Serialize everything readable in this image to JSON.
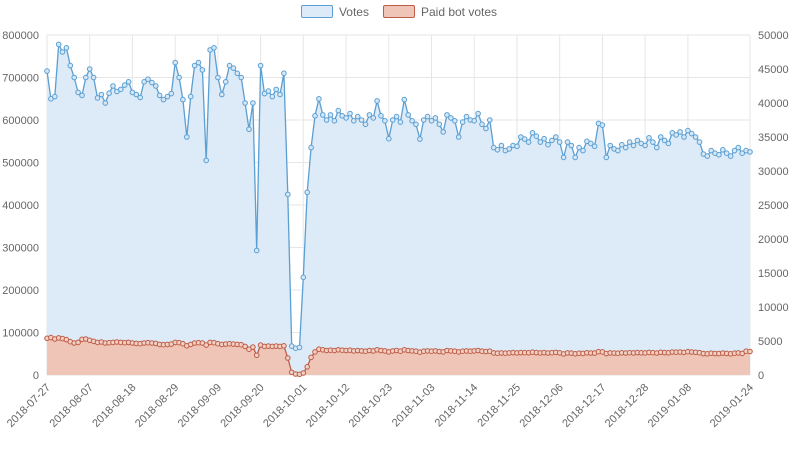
{
  "legend": [
    {
      "label": "Votes",
      "fill": "#dcebf7",
      "stroke": "#5b9fd3"
    },
    {
      "label": "Paid bot votes",
      "fill": "#eec5b6",
      "stroke": "#bd5c46"
    }
  ],
  "chart_data": {
    "type": "line",
    "title": "",
    "x_tick_labels": [
      "2018-07-27",
      "2018-08-07",
      "2018-08-18",
      "2018-08-29",
      "2018-09-09",
      "2018-09-20",
      "2018-10-01",
      "2018-10-12",
      "2018-10-23",
      "2018-11-03",
      "2018-11-14",
      "2018-11-25",
      "2018-12-06",
      "2018-12-17",
      "2018-12-28",
      "2019-01-08",
      "2019-01-24"
    ],
    "tick_days": [
      0,
      11,
      22,
      33,
      44,
      55,
      66,
      77,
      88,
      99,
      110,
      121,
      132,
      143,
      154,
      165,
      181
    ],
    "left_axis": {
      "min": 0,
      "max": 800000,
      "step": 100000
    },
    "right_axis": {
      "min": 0,
      "max": 50000,
      "step": 5000
    },
    "grid": true,
    "legend_position": "top",
    "series": [
      {
        "name": "Votes",
        "axis": "left",
        "stroke": "#5b9fd3",
        "point_fill": "#d6e8f6",
        "area_fill": "#dcebf7",
        "values": [
          715000,
          650000,
          655000,
          778000,
          760000,
          770000,
          728000,
          700000,
          665000,
          658000,
          700000,
          720000,
          700000,
          652000,
          660000,
          640000,
          663000,
          680000,
          667000,
          672000,
          682000,
          690000,
          665000,
          660000,
          653000,
          690000,
          696000,
          688000,
          680000,
          658000,
          648000,
          655000,
          662000,
          735000,
          700000,
          648000,
          560000,
          655000,
          728000,
          735000,
          718000,
          505000,
          765000,
          770000,
          700000,
          660000,
          690000,
          728000,
          722000,
          710000,
          700000,
          640000,
          578000,
          640000,
          293000,
          728000,
          662000,
          668000,
          655000,
          672000,
          660000,
          710000,
          425000,
          68000,
          63000,
          65000,
          230000,
          430000,
          535000,
          610000,
          650000,
          612000,
          600000,
          612000,
          598000,
          622000,
          610000,
          605000,
          615000,
          598000,
          608000,
          600000,
          590000,
          612000,
          605000,
          645000,
          610000,
          598000,
          556000,
          600000,
          608000,
          595000,
          648000,
          612000,
          598000,
          590000,
          555000,
          600000,
          608000,
          598000,
          605000,
          590000,
          572000,
          612000,
          605000,
          598000,
          560000,
          595000,
          608000,
          600000,
          598000,
          615000,
          590000,
          580000,
          600000,
          535000,
          530000,
          540000,
          528000,
          532000,
          540000,
          538000,
          560000,
          555000,
          548000,
          570000,
          562000,
          548000,
          556000,
          542000,
          552000,
          560000,
          548000,
          512000,
          548000,
          540000,
          512000,
          535000,
          528000,
          550000,
          545000,
          538000,
          592000,
          588000,
          512000,
          540000,
          532000,
          528000,
          542000,
          535000,
          548000,
          540000,
          552000,
          545000,
          540000,
          558000,
          548000,
          535000,
          560000,
          552000,
          545000,
          570000,
          565000,
          572000,
          560000,
          575000,
          568000,
          560000,
          548000,
          520000,
          515000,
          528000,
          522000,
          518000,
          530000,
          522000,
          515000,
          528000,
          535000,
          522000,
          528000,
          525000
        ]
      },
      {
        "name": "Paid bot votes",
        "axis": "right",
        "stroke": "#bd5c46",
        "point_fill": "#f3d0c4",
        "area_fill": "#eec5b6",
        "values": [
          5400,
          5500,
          5300,
          5450,
          5350,
          5200,
          4900,
          4700,
          4800,
          5250,
          5300,
          5100,
          4950,
          4800,
          4850,
          4700,
          4750,
          4800,
          4850,
          4800,
          4750,
          4800,
          4700,
          4650,
          4600,
          4700,
          4750,
          4700,
          4650,
          4500,
          4450,
          4500,
          4550,
          4800,
          4750,
          4600,
          4300,
          4500,
          4700,
          4750,
          4700,
          4400,
          4800,
          4750,
          4600,
          4500,
          4550,
          4600,
          4550,
          4500,
          4450,
          4200,
          3800,
          4100,
          2900,
          4400,
          4200,
          4250,
          4200,
          4250,
          4200,
          4300,
          2500,
          400,
          150,
          100,
          300,
          1200,
          2600,
          3400,
          3800,
          3700,
          3600,
          3650,
          3600,
          3700,
          3650,
          3600,
          3650,
          3550,
          3600,
          3550,
          3500,
          3600,
          3550,
          3700,
          3600,
          3550,
          3400,
          3550,
          3600,
          3500,
          3700,
          3600,
          3550,
          3500,
          3350,
          3500,
          3550,
          3500,
          3550,
          3450,
          3400,
          3600,
          3550,
          3500,
          3400,
          3500,
          3550,
          3500,
          3550,
          3600,
          3500,
          3450,
          3500,
          3250,
          3200,
          3250,
          3200,
          3250,
          3300,
          3250,
          3300,
          3280,
          3260,
          3350,
          3300,
          3250,
          3300,
          3230,
          3280,
          3320,
          3260,
          3100,
          3250,
          3220,
          3120,
          3200,
          3180,
          3260,
          3240,
          3220,
          3420,
          3400,
          3150,
          3250,
          3220,
          3200,
          3260,
          3230,
          3280,
          3250,
          3300,
          3270,
          3250,
          3320,
          3280,
          3230,
          3340,
          3300,
          3270,
          3380,
          3350,
          3380,
          3330,
          3420,
          3380,
          3340,
          3280,
          3150,
          3120,
          3200,
          3160,
          3140,
          3220,
          3170,
          3120,
          3200,
          3250,
          3180,
          3500,
          3450
        ]
      }
    ]
  }
}
